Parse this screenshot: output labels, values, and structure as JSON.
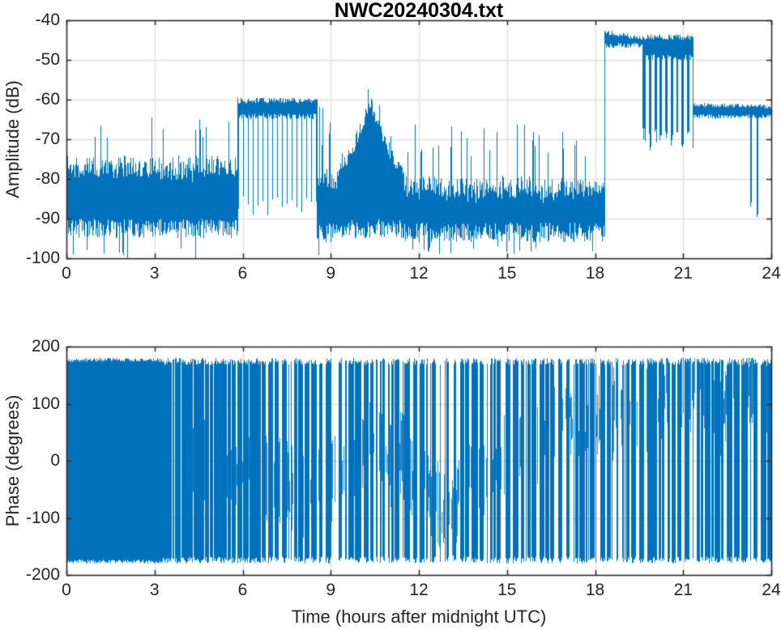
{
  "figure": {
    "title": "NWC20240304.txt",
    "line_color": "#0072BD",
    "axis_color": "#262626",
    "grid_color": "#e0e0e0",
    "background": "#ffffff"
  },
  "amplitude_plot": {
    "ylabel": "Amplitude (dB)",
    "ylim": [
      -100,
      -40
    ],
    "xlim": [
      0,
      24
    ],
    "yticks": [
      -40,
      -50,
      -60,
      -70,
      -80,
      -90,
      -100
    ],
    "xticks": [
      0,
      3,
      6,
      9,
      12,
      15,
      18,
      21,
      24
    ]
  },
  "phase_plot": {
    "ylabel": "Phase (degrees)",
    "xlabel": "Time (hours after midnight UTC)",
    "ylim": [
      -200,
      200
    ],
    "xlim": [
      0,
      24
    ],
    "yticks": [
      200,
      100,
      0,
      -100,
      -200
    ],
    "xticks": [
      0,
      3,
      6,
      9,
      12,
      15,
      18,
      21,
      24
    ]
  },
  "chart_data": [
    {
      "type": "line",
      "title": "NWC20240304.txt",
      "xlabel": "",
      "ylabel": "Amplitude (dB)",
      "xlim": [
        0,
        24
      ],
      "ylim": [
        -100,
        -40
      ],
      "grid": true,
      "legend": null,
      "series_color": "#0072BD",
      "segments": [
        {
          "type": "noise",
          "t0": 0,
          "t1": 5.85,
          "top": -74,
          "bot": -95,
          "jitter": 5,
          "p_up": 0.07,
          "spike_top": -64,
          "p_dn": 0.06,
          "spike_bot": -101,
          "events": [
            {
              "t": 1.93,
              "lo": -100,
              "width": 0.035
            }
          ]
        },
        {
          "type": "keyed",
          "t0": 5.85,
          "t1": 8.55,
          "top": -59.5,
          "bot": -65,
          "dip": -90,
          "period": 0.165,
          "duty": 0.14,
          "jitter": 1.5,
          "events": []
        },
        {
          "type": "noise",
          "t0": 8.55,
          "t1": 9.25,
          "top": -77,
          "bot": -96,
          "jitter": 5,
          "p_up": 0.1,
          "spike_top": -64,
          "p_dn": 0.05,
          "spike_bot": -100,
          "events": [
            {
              "t": 8.62,
              "hi": -60,
              "width": 0.03
            },
            {
              "t": 8.73,
              "hi": -62,
              "width": 0.03
            }
          ]
        },
        {
          "type": "hump",
          "t0": 9.25,
          "t1": 11.5,
          "top_base": -77,
          "top_peak": -58.5,
          "t_peak": 10.35,
          "half_width": 1.15,
          "bot": -95,
          "jitter": 5,
          "events": []
        },
        {
          "type": "noise",
          "t0": 11.5,
          "t1": 18.35,
          "top": -79,
          "bot": -96,
          "jitter": 5,
          "p_up": 0.1,
          "spike_top": -66,
          "p_dn": 0.05,
          "spike_bot": -99,
          "events": []
        },
        {
          "type": "band",
          "t0": 18.35,
          "t1": 19.65,
          "top": -42.3,
          "top_end": -44,
          "bot": -47,
          "jitter": 1.3,
          "events": []
        },
        {
          "type": "keyed",
          "t0": 19.65,
          "t1": 21.35,
          "top": -43.5,
          "bot": -50,
          "dip": -73,
          "period": 0.185,
          "duty": 0.42,
          "jitter": 1.5,
          "events": []
        },
        {
          "type": "band",
          "t0": 21.35,
          "t1": 24,
          "top": -60.8,
          "top_end": -61.2,
          "bot": -64.8,
          "jitter": 1.1,
          "events": [
            {
              "t": 23.31,
              "lo": -87,
              "width": 0.07
            },
            {
              "t": 23.52,
              "lo": -90.5,
              "width": 0.06
            }
          ]
        }
      ]
    },
    {
      "type": "line",
      "title": "",
      "xlabel": "Time (hours after midnight UTC)",
      "ylabel": "Phase (degrees)",
      "xlim": [
        0,
        24
      ],
      "ylim": [
        -200,
        200
      ],
      "grid": true,
      "legend": null,
      "series_color": "#0072BD",
      "phase_range": [
        -180,
        180
      ],
      "density_segments": [
        {
          "t0": 0,
          "t1": 3.25,
          "density": 1.0
        },
        {
          "t0": 3.25,
          "t1": 4.3,
          "density": 0.93
        },
        {
          "t0": 4.3,
          "t1": 5.7,
          "density": 0.82
        },
        {
          "t0": 5.7,
          "t1": 8.3,
          "density": 0.62
        },
        {
          "t0": 8.3,
          "t1": 10.2,
          "density": 0.55
        },
        {
          "t0": 10.2,
          "t1": 11.6,
          "density": 0.6
        },
        {
          "t0": 11.6,
          "t1": 13.3,
          "density": 0.5
        },
        {
          "t0": 13.3,
          "t1": 16.2,
          "density": 0.66
        },
        {
          "t0": 16.2,
          "t1": 18.6,
          "density": 0.52
        },
        {
          "t0": 18.6,
          "t1": 21.3,
          "density": 0.58
        },
        {
          "t0": 21.3,
          "t1": 24,
          "density": 0.62
        }
      ]
    }
  ]
}
